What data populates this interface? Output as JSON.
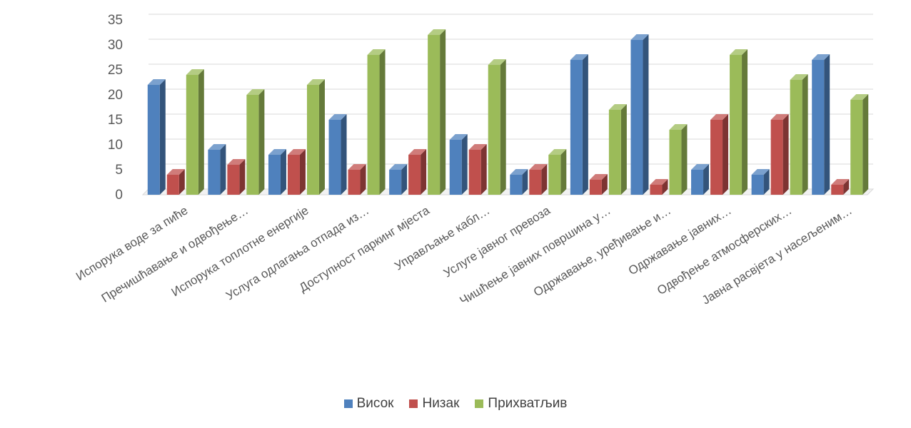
{
  "chart_data": {
    "type": "bar",
    "style": "3d-clustered-column",
    "ylim": [
      0,
      35
    ],
    "yticks": [
      0,
      5,
      10,
      15,
      20,
      25,
      30,
      35
    ],
    "grid": true,
    "legend_position": "bottom",
    "categories": [
      "Испорука воде за пиће",
      "Пречишћавање и одвођење…",
      "Испорука топлотне енергије",
      "Услуга одлагања отпада из…",
      "Доступност паркинг мјеста",
      "Управљање кабл…",
      "Услуге јавног превоза",
      "Чишћење јавних површина у…",
      "Одржавање, уређивање и…",
      "Одржавање јавних…",
      "Одвођење атмосферских…",
      "Јавна расвјета у насељеним…"
    ],
    "series": [
      {
        "name": "Висок",
        "color": "#4f81bd",
        "values": [
          22,
          9,
          8,
          15,
          5,
          11,
          4,
          27,
          31,
          5,
          4,
          27
        ]
      },
      {
        "name": "Низак",
        "color": "#c0504d",
        "values": [
          4,
          6,
          8,
          5,
          8,
          9,
          5,
          3,
          2,
          15,
          15,
          2
        ]
      },
      {
        "name": "Прихватљив",
        "color": "#9bbb59",
        "values": [
          24,
          20,
          22,
          28,
          32,
          26,
          8,
          17,
          13,
          28,
          23,
          19
        ]
      }
    ]
  }
}
